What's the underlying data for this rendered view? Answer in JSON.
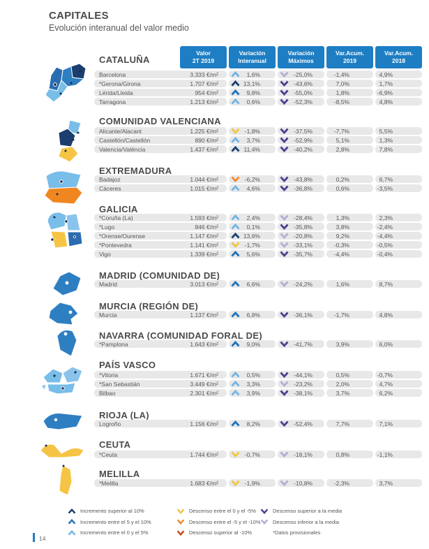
{
  "page": {
    "title": "CAPITALES",
    "subtitle": "Evolución interanual del valor medio",
    "page_number": "14"
  },
  "table_headers": [
    "Valor\n2T 2019",
    "Variación\nInteranual",
    "Variación\nMáximos",
    "Var.Acum.\n2019",
    "Var.Acum.\n2018"
  ],
  "colors": {
    "accent_blue": "#1e7ec3",
    "row_background": "#e8e8e9",
    "arrows": {
      "up-strong": "#1c3e6e",
      "up-mid": "#2173b8",
      "up-low": "#74b4e2",
      "down-low": "#f0c645",
      "down-mid": "#ef8b33",
      "down-strong": "#cc4517",
      "down-above-avg": "#4f3f90",
      "down-below-avg": "#b3aed4"
    },
    "map": {
      "navy": "#1c3e6e",
      "medium_blue": "#2e7fc2",
      "medium_blue_dark": "#2a6cb0",
      "light_blue": "#79bde9",
      "light_blue_2": "#8ac4ec",
      "yellow": "#f6c445",
      "orange": "#f0861f"
    }
  },
  "sections": [
    {
      "region": "CATALUÑA",
      "map": "catalonia",
      "rows": [
        {
          "label": "Barcelona",
          "valor": "3.333 €/m²",
          "interanual": {
            "arrow": "up-low",
            "value": "1,6%"
          },
          "maximos": {
            "arrow": "down-below-avg",
            "value": "-25,0%"
          },
          "acum2019": "-1,4%",
          "acum2018": "4,9%"
        },
        {
          "label": "*Gerona/Girona",
          "valor": "1.707 €/m²",
          "interanual": {
            "arrow": "up-strong",
            "value": "13,1%"
          },
          "maximos": {
            "arrow": "down-above-avg",
            "value": "-43,6%"
          },
          "acum2019": "7,0%",
          "acum2018": "1,7%"
        },
        {
          "label": "Lérida/Lleida",
          "valor": "954 €/m²",
          "interanual": {
            "arrow": "up-mid",
            "value": "9,8%"
          },
          "maximos": {
            "arrow": "down-above-avg",
            "value": "-55,0%"
          },
          "acum2019": "1,8%",
          "acum2018": "-6,9%"
        },
        {
          "label": "Tarragona",
          "valor": "1.213 €/m²",
          "interanual": {
            "arrow": "up-low",
            "value": "0,6%"
          },
          "maximos": {
            "arrow": "down-above-avg",
            "value": "-52,3%"
          },
          "acum2019": "-8,5%",
          "acum2018": "4,8%"
        }
      ]
    },
    {
      "region": "COMUNIDAD VALENCIANA",
      "map": "valencia",
      "rows": [
        {
          "label": "Alicante/Alacant",
          "valor": "1.225 €/m²",
          "interanual": {
            "arrow": "down-low",
            "value": "-1,8%"
          },
          "maximos": {
            "arrow": "down-above-avg",
            "value": "-37,5%"
          },
          "acum2019": "-7,7%",
          "acum2018": "5,5%"
        },
        {
          "label": "Castellón/Castellón",
          "valor": "890 €/m²",
          "interanual": {
            "arrow": "up-low",
            "value": "3,7%"
          },
          "maximos": {
            "arrow": "down-above-avg",
            "value": "-52,9%"
          },
          "acum2019": "5,1%",
          "acum2018": "1,3%"
        },
        {
          "label": "Valencia/València",
          "valor": "1.437 €/m²",
          "interanual": {
            "arrow": "up-strong",
            "value": "11,4%"
          },
          "maximos": {
            "arrow": "down-above-avg",
            "value": "-40,2%"
          },
          "acum2019": "2,8%",
          "acum2018": "7,8%"
        }
      ]
    },
    {
      "region": "EXTREMADURA",
      "map": "extremadura",
      "rows": [
        {
          "label": "Badajoz",
          "valor": "1.044 €/m²",
          "interanual": {
            "arrow": "down-mid",
            "value": "-6,2%"
          },
          "maximos": {
            "arrow": "down-above-avg",
            "value": "-43,8%"
          },
          "acum2019": "0,2%",
          "acum2018": "6,7%"
        },
        {
          "label": "Cáceres",
          "valor": "1.015 €/m²",
          "interanual": {
            "arrow": "up-low",
            "value": "4,6%"
          },
          "maximos": {
            "arrow": "down-above-avg",
            "value": "-36,8%"
          },
          "acum2019": "0,6%",
          "acum2018": "-3,5%"
        }
      ]
    },
    {
      "region": "GALICIA",
      "map": "galicia",
      "rows": [
        {
          "label": "*Coruña (La)",
          "valor": "1.593 €/m²",
          "interanual": {
            "arrow": "up-low",
            "value": "2,4%"
          },
          "maximos": {
            "arrow": "down-below-avg",
            "value": "-28,4%"
          },
          "acum2019": "1,3%",
          "acum2018": "2,3%"
        },
        {
          "label": "*Lugo",
          "valor": "846 €/m²",
          "interanual": {
            "arrow": "up-low",
            "value": "0,1%"
          },
          "maximos": {
            "arrow": "down-above-avg",
            "value": "-35,8%"
          },
          "acum2019": "3,8%",
          "acum2018": "-2,4%"
        },
        {
          "label": "*Orense/Ourense",
          "valor": "1.147 €/m²",
          "interanual": {
            "arrow": "up-strong",
            "value": "13,6%"
          },
          "maximos": {
            "arrow": "down-below-avg",
            "value": "-20,8%"
          },
          "acum2019": "9,2%",
          "acum2018": "-4,4%"
        },
        {
          "label": "*Pontevedra",
          "valor": "1.141 €/m²",
          "interanual": {
            "arrow": "down-low",
            "value": "-1,7%"
          },
          "maximos": {
            "arrow": "down-below-avg",
            "value": "-33,1%"
          },
          "acum2019": "-0,3%",
          "acum2018": "-0,5%"
        },
        {
          "label": "Vigo",
          "valor": "1.339 €/m²",
          "interanual": {
            "arrow": "up-mid",
            "value": "5,6%"
          },
          "maximos": {
            "arrow": "down-above-avg",
            "value": "-35,7%"
          },
          "acum2019": "-4,4%",
          "acum2018": "-0,4%"
        }
      ]
    },
    {
      "region": "MADRID (COMUNIDAD DE)",
      "map": "madrid",
      "rows": [
        {
          "label": "Madrid",
          "valor": "3.013 €/m²",
          "interanual": {
            "arrow": "up-mid",
            "value": "6,6%"
          },
          "maximos": {
            "arrow": "down-below-avg",
            "value": "-24,2%"
          },
          "acum2019": "1,6%",
          "acum2018": "8,7%"
        }
      ]
    },
    {
      "region": "MURCIA (REGIÓN DE)",
      "map": "murcia",
      "rows": [
        {
          "label": "Murcia",
          "valor": "1.137 €/m²",
          "interanual": {
            "arrow": "up-mid",
            "value": "6,8%"
          },
          "maximos": {
            "arrow": "down-above-avg",
            "value": "-36,1%"
          },
          "acum2019": "-1,7%",
          "acum2018": "4,8%"
        }
      ]
    },
    {
      "region": "NAVARRA (COMUNIDAD FORAL DE)",
      "map": "navarra",
      "rows": [
        {
          "label": "*Pamplona",
          "valor": "1.643 €/m²",
          "interanual": {
            "arrow": "up-mid",
            "value": "9,0%"
          },
          "maximos": {
            "arrow": "down-above-avg",
            "value": "-41,7%"
          },
          "acum2019": "3,9%",
          "acum2018": "6,0%"
        }
      ]
    },
    {
      "region": "PAÍS VASCO",
      "map": "pais-vasco",
      "rows": [
        {
          "label": "*Vitoria",
          "valor": "1.671 €/m²",
          "interanual": {
            "arrow": "up-low",
            "value": "0,5%"
          },
          "maximos": {
            "arrow": "down-above-avg",
            "value": "-44,1%"
          },
          "acum2019": "0,5%",
          "acum2018": "-0,7%"
        },
        {
          "label": "*San Sebastián",
          "valor": "3.449 €/m²",
          "interanual": {
            "arrow": "up-low",
            "value": "3,3%"
          },
          "maximos": {
            "arrow": "down-below-avg",
            "value": "-23,2%"
          },
          "acum2019": "2,0%",
          "acum2018": "4,7%"
        },
        {
          "label": "Bilbao",
          "valor": "2.301 €/m²",
          "interanual": {
            "arrow": "up-low",
            "value": "3,9%"
          },
          "maximos": {
            "arrow": "down-above-avg",
            "value": "-38,1%"
          },
          "acum2019": "3,7%",
          "acum2018": "6,2%"
        }
      ]
    },
    {
      "region": "RIOJA (LA)",
      "map": "rioja",
      "rows": [
        {
          "label": "Logroño",
          "valor": "1.156 €/m²",
          "interanual": {
            "arrow": "up-mid",
            "value": "8,2%"
          },
          "maximos": {
            "arrow": "down-above-avg",
            "value": "-52,4%"
          },
          "acum2019": "7,7%",
          "acum2018": "7,1%"
        }
      ]
    },
    {
      "region": "CEUTA",
      "map": "ceuta",
      "rows": [
        {
          "label": "*Ceuta",
          "valor": "1.744 €/m²",
          "interanual": {
            "arrow": "down-low",
            "value": "-0,7%"
          },
          "maximos": {
            "arrow": "down-below-avg",
            "value": "-18,1%"
          },
          "acum2019": "0,8%",
          "acum2018": "-1,1%"
        }
      ]
    },
    {
      "region": "MELILLA",
      "map": "melilla",
      "rows": [
        {
          "label": "*Melilla",
          "valor": "1.683 €/m²",
          "interanual": {
            "arrow": "down-low",
            "value": "-1,9%"
          },
          "maximos": {
            "arrow": "down-below-avg",
            "value": "-10,8%"
          },
          "acum2019": "-2,3%",
          "acum2018": "3,7%"
        }
      ]
    }
  ],
  "legend": {
    "columns": [
      [
        {
          "type": "up-strong",
          "label": "Incremento superior al 10%"
        },
        {
          "type": "up-mid",
          "label": "Incremento entre el 5 y el 10%"
        },
        {
          "type": "up-low",
          "label": "Incremento entre el 0 y el 5%"
        }
      ],
      [
        {
          "type": "down-low",
          "label": "Descenso entre el 0 y el -5%"
        },
        {
          "type": "down-mid",
          "label": "Descenso entre el -5 y el -10%"
        },
        {
          "type": "down-strong",
          "label": "Descenso superior al -10%"
        }
      ],
      [
        {
          "type": "down-above-avg",
          "label": "Descenso superior a la media"
        },
        {
          "type": "down-below-avg",
          "label": "Descenso inferior a la media"
        },
        {
          "type": null,
          "label": "*Datos provisionales"
        }
      ]
    ]
  }
}
